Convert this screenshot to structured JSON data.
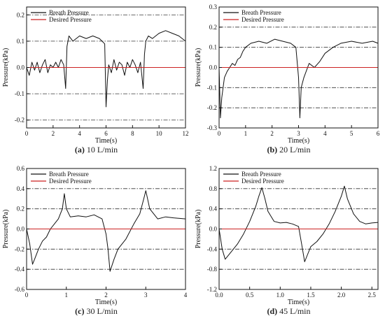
{
  "chart_data": [
    {
      "type": "line",
      "panel_label": "(a)",
      "caption": "10 L/min",
      "xlabel": "Time(s)",
      "ylabel": "Pressure(kPa)",
      "xlim": [
        0,
        12
      ],
      "ylim": [
        -0.23,
        0.23
      ],
      "xticks": [
        0,
        2,
        4,
        6,
        8,
        10,
        12
      ],
      "yticks": [
        -0.2,
        -0.1,
        0.0,
        0.1,
        0.2
      ],
      "ytick_labels": [
        "-0.2",
        "-0.1",
        "0.0",
        "0.1",
        "0.2"
      ],
      "guide_lines": [
        -0.2,
        -0.1,
        0.1,
        0.2
      ],
      "legend_position": "top-left",
      "series": [
        {
          "name": "Breath Pressure",
          "color": "#111111",
          "x": [
            0,
            0.2,
            0.4,
            0.6,
            0.8,
            1.0,
            1.2,
            1.4,
            1.6,
            1.8,
            2.0,
            2.2,
            2.4,
            2.6,
            2.8,
            2.95,
            3.05,
            3.2,
            3.5,
            4.0,
            4.5,
            5.0,
            5.5,
            5.9,
            6.0,
            6.1,
            6.2,
            6.4,
            6.6,
            6.8,
            7.0,
            7.2,
            7.4,
            7.6,
            7.8,
            8.0,
            8.2,
            8.4,
            8.6,
            8.8,
            8.9,
            9.0,
            9.2,
            9.5,
            10.0,
            10.5,
            11.0,
            11.5,
            12.0
          ],
          "y": [
            0.0,
            -0.03,
            0.02,
            -0.01,
            0.02,
            -0.02,
            0.01,
            0.03,
            -0.02,
            0.01,
            0.0,
            0.02,
            0.0,
            0.03,
            0.01,
            -0.08,
            0.08,
            0.12,
            0.1,
            0.12,
            0.11,
            0.12,
            0.11,
            0.09,
            -0.15,
            -0.05,
            0.01,
            -0.02,
            0.03,
            -0.01,
            0.02,
            0.01,
            -0.03,
            0.02,
            0.0,
            0.03,
            0.01,
            -0.02,
            0.02,
            -0.08,
            0.05,
            0.1,
            0.12,
            0.11,
            0.13,
            0.14,
            0.13,
            0.12,
            0.1
          ]
        },
        {
          "name": "Desired Pressure",
          "color": "#cc2222",
          "x": [
            0,
            12
          ],
          "y": [
            0,
            0
          ]
        }
      ]
    },
    {
      "type": "line",
      "panel_label": "(b)",
      "caption": "20 L/min",
      "xlabel": "Time(s)",
      "ylabel": "Pressure(kPa)",
      "xlim": [
        0,
        6
      ],
      "ylim": [
        -0.3,
        0.3
      ],
      "xticks": [
        0,
        1,
        2,
        3,
        4,
        5,
        6
      ],
      "yticks": [
        -0.3,
        -0.2,
        -0.1,
        0.0,
        0.1,
        0.2,
        0.3
      ],
      "ytick_labels": [
        "-0.3",
        "-0.2",
        "-0.1",
        "0.0",
        "0.1",
        "0.2",
        "0.3"
      ],
      "guide_lines": [
        -0.2,
        -0.1,
        0.1,
        0.2
      ],
      "legend_position": "top-left",
      "series": [
        {
          "name": "Breath Pressure",
          "color": "#111111",
          "x": [
            0,
            0.05,
            0.1,
            0.2,
            0.3,
            0.4,
            0.5,
            0.6,
            0.7,
            0.8,
            0.9,
            1.0,
            1.2,
            1.5,
            1.8,
            2.1,
            2.4,
            2.7,
            2.9,
            3.0,
            3.05,
            3.1,
            3.2,
            3.4,
            3.6,
            3.8,
            4.0,
            4.3,
            4.6,
            5.0,
            5.4,
            5.8,
            6.0
          ],
          "y": [
            0.0,
            -0.25,
            -0.15,
            -0.05,
            -0.02,
            0.0,
            0.02,
            0.01,
            0.04,
            0.05,
            0.08,
            0.1,
            0.12,
            0.13,
            0.12,
            0.14,
            0.13,
            0.12,
            0.1,
            -0.05,
            -0.25,
            -0.1,
            -0.05,
            0.02,
            0.0,
            0.03,
            0.07,
            0.1,
            0.12,
            0.13,
            0.12,
            0.13,
            0.12
          ]
        },
        {
          "name": "Desired Pressure",
          "color": "#cc2222",
          "x": [
            0,
            6
          ],
          "y": [
            0,
            0
          ]
        }
      ]
    },
    {
      "type": "line",
      "panel_label": "(c)",
      "caption": "30 L/min",
      "xlabel": "Time(s)",
      "ylabel": "Pressure(kPa)",
      "xlim": [
        0,
        4
      ],
      "ylim": [
        -0.6,
        0.6
      ],
      "xticks": [
        0,
        1,
        2,
        3,
        4
      ],
      "yticks": [
        -0.6,
        -0.4,
        -0.2,
        0.0,
        0.2,
        0.4,
        0.6
      ],
      "ytick_labels": [
        "-0.6",
        "-0.4",
        "-0.2",
        "0.0",
        "0.2",
        "0.4",
        "0.6"
      ],
      "guide_lines": [
        -0.4,
        -0.2,
        0.2,
        0.4
      ],
      "legend_position": "top-left",
      "series": [
        {
          "name": "Breath Pressure",
          "color": "#111111",
          "x": [
            0,
            0.08,
            0.15,
            0.2,
            0.3,
            0.4,
            0.5,
            0.6,
            0.7,
            0.8,
            0.9,
            0.95,
            1.0,
            1.1,
            1.3,
            1.5,
            1.7,
            1.9,
            2.0,
            2.05,
            2.1,
            2.2,
            2.3,
            2.5,
            2.7,
            2.85,
            2.95,
            3.0,
            3.1,
            3.3,
            3.5,
            3.7,
            4.0
          ],
          "y": [
            0.0,
            -0.15,
            -0.35,
            -0.3,
            -0.2,
            -0.12,
            -0.08,
            0.0,
            0.05,
            0.1,
            0.2,
            0.35,
            0.2,
            0.12,
            0.13,
            0.12,
            0.14,
            0.1,
            -0.05,
            -0.2,
            -0.42,
            -0.3,
            -0.2,
            -0.1,
            0.05,
            0.15,
            0.3,
            0.38,
            0.2,
            0.1,
            0.12,
            0.11,
            0.1
          ]
        },
        {
          "name": "Desired Pressure",
          "color": "#cc2222",
          "x": [
            0,
            4
          ],
          "y": [
            0,
            0
          ]
        }
      ]
    },
    {
      "type": "line",
      "panel_label": "(d)",
      "caption": "45 L/min",
      "xlabel": "Time(s)",
      "ylabel": "Pressure(kPa)",
      "xlim": [
        0,
        2.6
      ],
      "ylim": [
        -1.2,
        1.2
      ],
      "xticks": [
        0,
        0.5,
        1.0,
        1.5,
        2.0,
        2.5
      ],
      "xtick_labels": [
        "0.0",
        "0.5",
        "1.0",
        "1.5",
        "2.0",
        "2.5"
      ],
      "yticks": [
        -1.2,
        -0.8,
        -0.4,
        0.0,
        0.4,
        0.8,
        1.2
      ],
      "ytick_labels": [
        "-1.2",
        "-0.8",
        "-0.4",
        "0.0",
        "0.4",
        "0.8",
        "1.2"
      ],
      "guide_lines": [
        -0.8,
        -0.4,
        0.4,
        0.8
      ],
      "legend_position": "top-left",
      "series": [
        {
          "name": "Breath Pressure",
          "color": "#111111",
          "x": [
            0,
            0.05,
            0.1,
            0.2,
            0.3,
            0.4,
            0.5,
            0.6,
            0.65,
            0.7,
            0.75,
            0.8,
            0.9,
            1.0,
            1.1,
            1.2,
            1.3,
            1.35,
            1.4,
            1.45,
            1.5,
            1.6,
            1.7,
            1.8,
            1.9,
            2.0,
            2.05,
            2.1,
            2.2,
            2.3,
            2.4,
            2.5,
            2.6
          ],
          "y": [
            0.0,
            -0.4,
            -0.6,
            -0.45,
            -0.3,
            -0.1,
            0.15,
            0.45,
            0.65,
            0.82,
            0.6,
            0.35,
            0.15,
            0.12,
            0.13,
            0.1,
            0.05,
            -0.3,
            -0.65,
            -0.5,
            -0.35,
            -0.25,
            -0.1,
            0.1,
            0.35,
            0.65,
            0.85,
            0.6,
            0.3,
            0.15,
            0.1,
            0.12,
            0.13
          ]
        },
        {
          "name": "Desired Pressure",
          "color": "#cc2222",
          "x": [
            0,
            2.6
          ],
          "y": [
            0,
            0
          ]
        }
      ]
    }
  ]
}
